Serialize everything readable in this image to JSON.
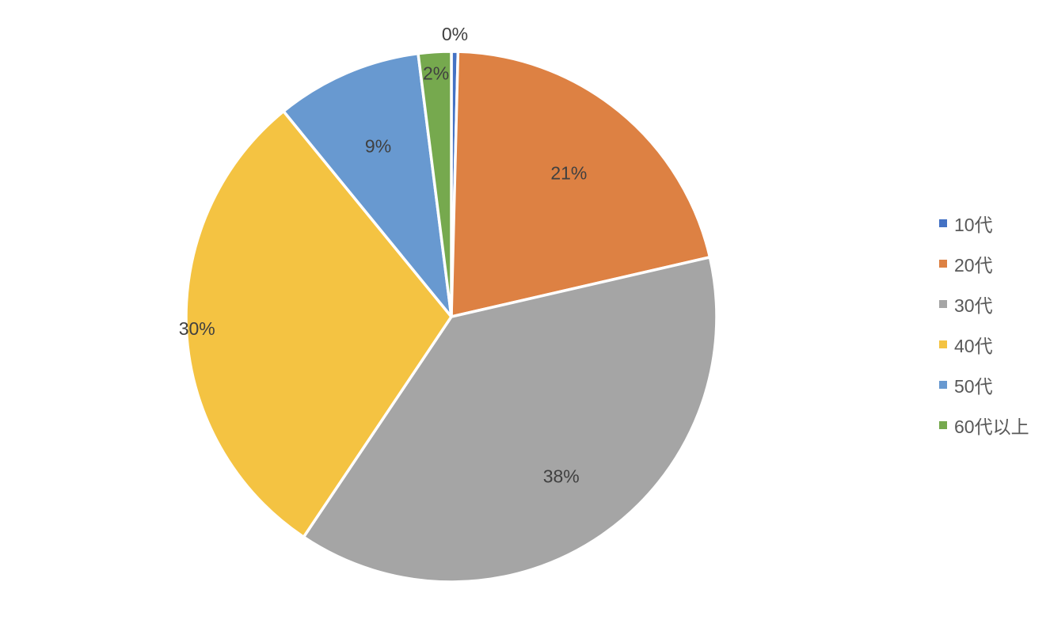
{
  "chart_data": {
    "type": "pie",
    "title": "",
    "categories": [
      "10代",
      "20代",
      "30代",
      "40代",
      "50代",
      "60代以上"
    ],
    "values": [
      0.4,
      21,
      38,
      29.7,
      8.9,
      2
    ],
    "data_labels": [
      "0%",
      "21%",
      "38%",
      "30%",
      "9%",
      "2%"
    ],
    "colors": [
      "#4472C4",
      "#DD8143",
      "#A5A5A5",
      "#F4C342",
      "#6899D0",
      "#76A94E"
    ],
    "start_angle_deg": 0,
    "direction": "clockwise",
    "legend_position": "right"
  },
  "legend": {
    "items": [
      {
        "label": "10代",
        "color": "#4472C4"
      },
      {
        "label": "20代",
        "color": "#DD8143"
      },
      {
        "label": "30代",
        "color": "#A5A5A5"
      },
      {
        "label": "40代",
        "color": "#F4C342"
      },
      {
        "label": "50代",
        "color": "#6899D0"
      },
      {
        "label": "60代以上",
        "color": "#76A94E"
      }
    ]
  }
}
